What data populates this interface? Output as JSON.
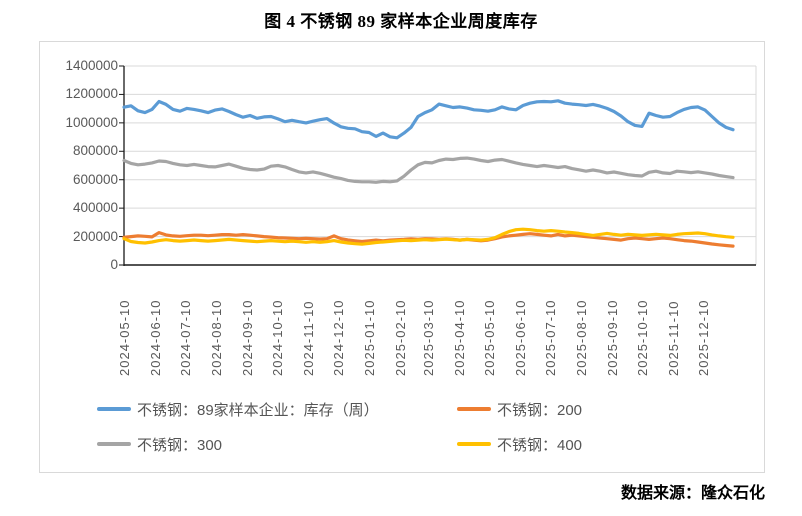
{
  "title": "图 4 不锈钢 89 家样本企业周度库存",
  "source_note": "数据来源：隆众石化",
  "chart_data": {
    "type": "line",
    "title": "图 4 不锈钢 89 家样本企业周度库存",
    "grid": true,
    "legend_position": "bottom",
    "x_axis": {
      "start_date": "2024-05-10",
      "interval_days": 7,
      "tick_labels": [
        "2024-05-10",
        "2024-06-10",
        "2024-07-10",
        "2024-08-10",
        "2024-09-10",
        "2024-10-10",
        "2024-11-10",
        "2024-12-10",
        "2025-01-10",
        "2025-02-10",
        "2025-03-10",
        "2025-04-10",
        "2025-05-10",
        "2025-06-10",
        "2025-07-10",
        "2025-08-10",
        "2025-09-10",
        "2025-10-10",
        "2025-11-10",
        "2025-12-10"
      ]
    },
    "y_axis": {
      "min": 0,
      "max": 1400000,
      "tick_step": 200000,
      "ticks": [
        0,
        200000,
        400000,
        600000,
        800000,
        1000000,
        1200000,
        1400000
      ]
    },
    "series": [
      {
        "name": "不锈钢：89家样本企业：库存（周）",
        "color": "#5b9bd5",
        "values": [
          1110000,
          1120000,
          1085000,
          1072000,
          1095000,
          1150000,
          1130000,
          1095000,
          1082000,
          1102000,
          1095000,
          1085000,
          1072000,
          1090000,
          1098000,
          1080000,
          1058000,
          1040000,
          1052000,
          1032000,
          1042000,
          1045000,
          1028000,
          1008000,
          1018000,
          1008000,
          1000000,
          1012000,
          1022000,
          1030000,
          998000,
          972000,
          962000,
          958000,
          938000,
          932000,
          905000,
          928000,
          902000,
          895000,
          928000,
          968000,
          1045000,
          1072000,
          1092000,
          1132000,
          1120000,
          1108000,
          1112000,
          1104000,
          1092000,
          1088000,
          1082000,
          1092000,
          1112000,
          1098000,
          1092000,
          1122000,
          1138000,
          1148000,
          1150000,
          1148000,
          1155000,
          1138000,
          1132000,
          1128000,
          1122000,
          1130000,
          1118000,
          1102000,
          1080000,
          1048000,
          1008000,
          982000,
          975000,
          1068000,
          1052000,
          1040000,
          1045000,
          1072000,
          1095000,
          1108000,
          1112000,
          1090000,
          1045000,
          1000000,
          968000,
          952000
        ]
      },
      {
        "name": "不锈钢：200",
        "color": "#ed7d31",
        "values": [
          195000,
          200000,
          205000,
          202000,
          198000,
          228000,
          212000,
          205000,
          202000,
          206000,
          210000,
          210000,
          206000,
          210000,
          214000,
          214000,
          210000,
          214000,
          210000,
          205000,
          200000,
          196000,
          192000,
          190000,
          188000,
          185000,
          188000,
          185000,
          182000,
          185000,
          205000,
          185000,
          176000,
          170000,
          165000,
          170000,
          175000,
          170000,
          175000,
          178000,
          180000,
          184000,
          180000,
          185000,
          184000,
          180000,
          184000,
          180000,
          175000,
          180000,
          175000,
          170000,
          175000,
          185000,
          198000,
          205000,
          210000,
          215000,
          220000,
          215000,
          210000,
          205000,
          215000,
          205000,
          210000,
          205000,
          200000,
          195000,
          190000,
          185000,
          180000,
          175000,
          185000,
          190000,
          185000,
          180000,
          185000,
          190000,
          185000,
          178000,
          172000,
          168000,
          162000,
          155000,
          148000,
          142000,
          137000,
          133000
        ]
      },
      {
        "name": "不锈钢：300",
        "color": "#a5a5a5",
        "values": [
          735000,
          715000,
          705000,
          710000,
          718000,
          732000,
          728000,
          715000,
          705000,
          700000,
          708000,
          700000,
          692000,
          690000,
          700000,
          710000,
          695000,
          680000,
          672000,
          668000,
          675000,
          695000,
          700000,
          690000,
          672000,
          655000,
          648000,
          655000,
          645000,
          632000,
          618000,
          608000,
          595000,
          588000,
          585000,
          585000,
          582000,
          588000,
          585000,
          592000,
          625000,
          668000,
          705000,
          722000,
          718000,
          735000,
          745000,
          742000,
          750000,
          752000,
          745000,
          735000,
          728000,
          738000,
          742000,
          730000,
          718000,
          708000,
          700000,
          692000,
          700000,
          694000,
          686000,
          692000,
          678000,
          670000,
          660000,
          668000,
          660000,
          648000,
          654000,
          645000,
          635000,
          630000,
          626000,
          652000,
          660000,
          648000,
          644000,
          660000,
          656000,
          650000,
          656000,
          648000,
          640000,
          630000,
          622000,
          615000
        ]
      },
      {
        "name": "不锈钢：400",
        "color": "#ffc000",
        "values": [
          185000,
          165000,
          158000,
          155000,
          162000,
          172000,
          178000,
          172000,
          168000,
          172000,
          176000,
          172000,
          168000,
          172000,
          176000,
          180000,
          176000,
          172000,
          168000,
          164000,
          168000,
          172000,
          168000,
          164000,
          168000,
          164000,
          160000,
          164000,
          160000,
          164000,
          172000,
          162000,
          155000,
          150000,
          146000,
          152000,
          158000,
          162000,
          166000,
          170000,
          174000,
          172000,
          175000,
          178000,
          175000,
          178000,
          182000,
          178000,
          175000,
          180000,
          178000,
          175000,
          180000,
          192000,
          215000,
          235000,
          248000,
          252000,
          248000,
          242000,
          238000,
          242000,
          238000,
          232000,
          228000,
          222000,
          215000,
          208000,
          215000,
          222000,
          215000,
          210000,
          215000,
          212000,
          208000,
          212000,
          216000,
          212000,
          208000,
          215000,
          220000,
          222000,
          225000,
          220000,
          212000,
          205000,
          199000,
          195000
        ]
      }
    ]
  }
}
